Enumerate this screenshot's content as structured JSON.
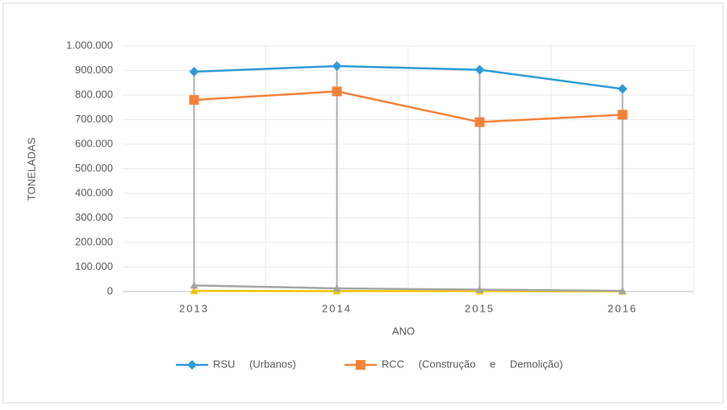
{
  "chart_data": {
    "type": "line",
    "x_label": "ANO",
    "y_label": "TONELADAS",
    "categories": [
      "2013",
      "2014",
      "2015",
      "2016"
    ],
    "series": [
      {
        "name": "RSU (Urbanos)",
        "color": "#2e9bd6",
        "marker": "diamond",
        "values": [
          895000,
          918000,
          903000,
          825000
        ]
      },
      {
        "name": "RCC (Construção e Demolição)",
        "color": "#f4823a",
        "marker": "square",
        "values": [
          780000,
          815000,
          690000,
          720000
        ]
      },
      {
        "color": "#a5a5a5",
        "marker": "triangle",
        "values": [
          25000,
          13000,
          8000,
          3000
        ]
      },
      {
        "color": "#f2c200",
        "marker": "triangle",
        "values": [
          3000,
          2000,
          2000,
          1000
        ]
      }
    ],
    "ylim": [
      0,
      1000000
    ],
    "yticks": [
      0,
      {
        "value": 100000,
        "label": "100.000"
      },
      {
        "value": 200000,
        "label": "200.000"
      },
      {
        "value": 300000,
        "label": "300.000"
      },
      {
        "value": 400000,
        "label": "400.000"
      },
      {
        "value": 500000,
        "label": "500.000"
      },
      {
        "value": 600000,
        "label": "600.000"
      },
      {
        "value": 700000,
        "label": "700.000"
      },
      {
        "value": 800000,
        "label": "800.000"
      },
      {
        "value": 900000,
        "label": "900.000"
      },
      {
        "value": 1000000,
        "label": "1.000.000"
      }
    ],
    "grid": true,
    "legend": "bottom"
  }
}
